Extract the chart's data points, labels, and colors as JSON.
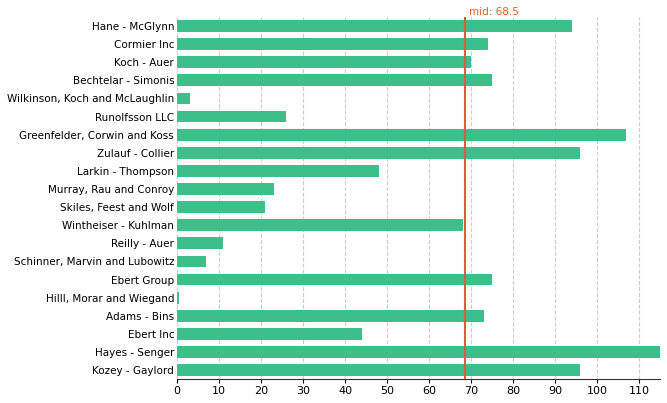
{
  "categories": [
    "Kozey - Gaylord",
    "Hayes - Senger",
    "Ebert Inc",
    "Adams - Bins",
    "Hilll, Morar and Wiegand",
    "Ebert Group",
    "Schinner, Marvin and Lubowitz",
    "Reilly - Auer",
    "Wintheiser - Kuhlman",
    "Skiles, Feest and Wolf",
    "Murray, Rau and Conroy",
    "Larkin - Thompson",
    "Zulauf - Collier",
    "Greenfelder, Corwin and Koss",
    "Runolfsson LLC",
    "Wilkinson, Koch and McLaughlin",
    "Bechtelar - Simonis",
    "Koch - Auer",
    "Cormier Inc",
    "Hane - McGlynn"
  ],
  "values": [
    96,
    116,
    44,
    73,
    0.5,
    75,
    7,
    11,
    68,
    21,
    23,
    48,
    96,
    107,
    26,
    3,
    75,
    70,
    74,
    94
  ],
  "bar_color": "#3dbf8a",
  "midline_value": 68.5,
  "midline_color": "#d9622b",
  "midline_label": "mid: 68.5",
  "xlim": [
    0,
    115
  ],
  "xticks": [
    0,
    10,
    20,
    30,
    40,
    50,
    60,
    70,
    80,
    90,
    100,
    110
  ],
  "background_color": "#ffffff",
  "grid_color": "#cccccc",
  "bar_height": 0.65,
  "label_fontsize": 7.5,
  "tick_fontsize": 8.0
}
